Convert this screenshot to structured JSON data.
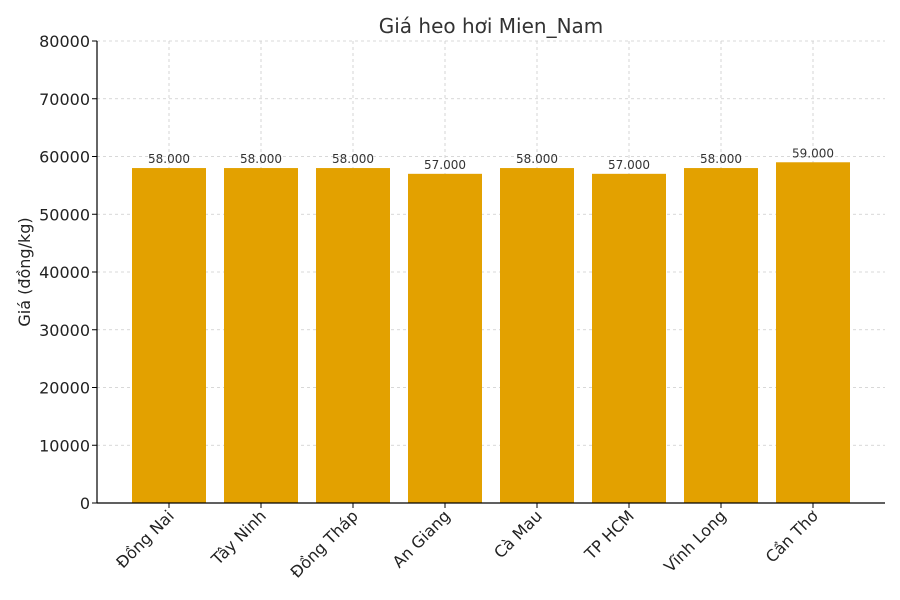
{
  "chart_data": {
    "type": "bar",
    "title": "Giá heo hơi Mien_Nam",
    "xlabel": "",
    "ylabel": "Giá (đồng/kg)",
    "categories": [
      "Đồng Nai",
      "Tây Ninh",
      "Đồng Tháp",
      "An Giang",
      "Cà Mau",
      "TP HCM",
      "Vĩnh Long",
      "Cần Thơ"
    ],
    "values": [
      58000,
      58000,
      58000,
      57000,
      58000,
      57000,
      58000,
      59000
    ],
    "value_labels": [
      "58.000",
      "58.000",
      "58.000",
      "57.000",
      "58.000",
      "57.000",
      "58.000",
      "59.000"
    ],
    "ylim": [
      0,
      80000
    ],
    "yticks": [
      "0",
      "10000",
      "20000",
      "30000",
      "40000",
      "50000",
      "60000",
      "70000",
      "80000"
    ],
    "grid": true,
    "bar_color": "#E3A100"
  }
}
